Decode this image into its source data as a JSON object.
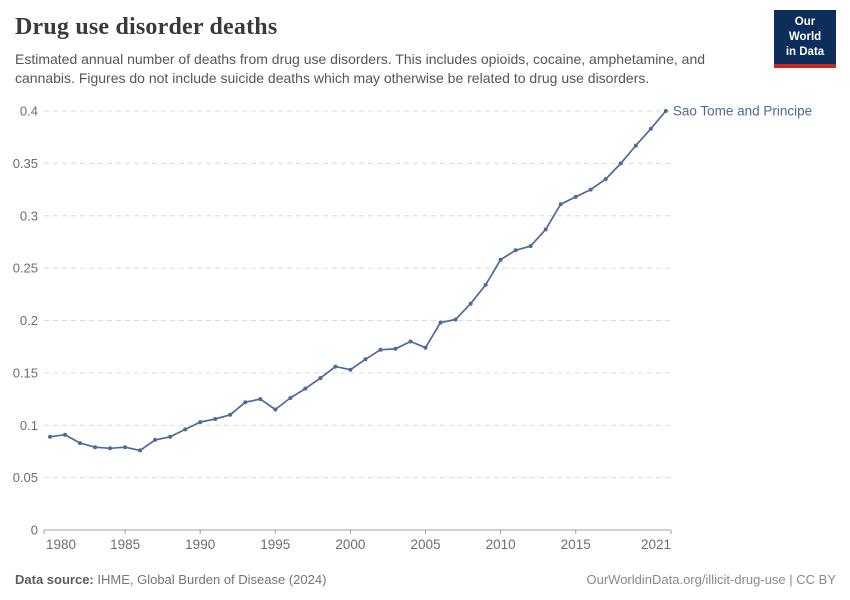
{
  "header": {
    "title": "Drug use disorder deaths",
    "subtitle": "Estimated annual number of deaths from drug use disorders. This includes opioids, cocaine, amphetamine, and cannabis. Figures do not include suicide deaths which may otherwise be related to drug use disorders.",
    "logo": {
      "line1": "Our World",
      "line2": "in Data",
      "bg_color": "#0D2E5A",
      "bar_color": "#C5281C"
    }
  },
  "chart_data": {
    "type": "line",
    "title": "Drug use disorder deaths",
    "entity_label": "Sao Tome and Principe",
    "line_color": "#4C6A9C",
    "grid": true,
    "legend_position": "end-of-line-label",
    "x": [
      1980,
      1981,
      1982,
      1983,
      1984,
      1985,
      1986,
      1987,
      1988,
      1989,
      1990,
      1991,
      1992,
      1993,
      1994,
      1995,
      1996,
      1997,
      1998,
      1999,
      2000,
      2001,
      2002,
      2003,
      2004,
      2005,
      2006,
      2007,
      2008,
      2009,
      2010,
      2011,
      2012,
      2013,
      2014,
      2015,
      2016,
      2017,
      2018,
      2019,
      2020,
      2021
    ],
    "values": [
      0.089,
      0.091,
      0.083,
      0.079,
      0.078,
      0.079,
      0.076,
      0.086,
      0.089,
      0.096,
      0.103,
      0.106,
      0.11,
      0.122,
      0.125,
      0.115,
      0.126,
      0.135,
      0.145,
      0.156,
      0.153,
      0.163,
      0.172,
      0.173,
      0.18,
      0.174,
      0.198,
      0.201,
      0.216,
      0.234,
      0.258,
      0.267,
      0.271,
      0.287,
      0.311,
      0.318,
      0.325,
      0.335,
      0.35,
      0.367,
      0.383,
      0.4
    ],
    "xlabel": "",
    "ylabel": "",
    "xlim": [
      1980,
      2021
    ],
    "ylim": [
      0,
      0.4
    ],
    "xticks": [
      1980,
      1985,
      1990,
      1995,
      2000,
      2005,
      2010,
      2015,
      2021
    ],
    "yticks": [
      0,
      0.05,
      0.1,
      0.15,
      0.2,
      0.25,
      0.3,
      0.35,
      0.4
    ],
    "ytick_labels": [
      "0",
      "0.05",
      "0.1",
      "0.15",
      "0.2",
      "0.25",
      "0.3",
      "0.35",
      "0.4"
    ],
    "axis_color": "#a0a0a0",
    "grid_color": "#dcdcdc",
    "tick_label_color": "#6e6e6e"
  },
  "footer": {
    "source_label": "Data source:",
    "source_text": "IHME, Global Burden of Disease (2024)",
    "link_text": "OurWorldinData.org/illicit-drug-use | CC BY"
  }
}
